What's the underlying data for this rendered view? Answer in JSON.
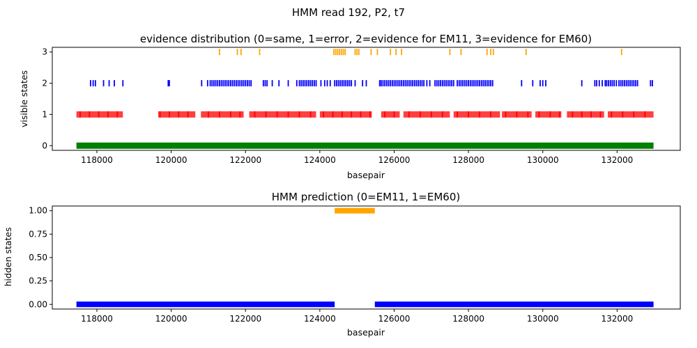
{
  "figure": {
    "suptitle": "HMM read 192, P2, t7"
  },
  "chart_data": [
    {
      "type": "scatter",
      "title": "evidence distribution (0=same, 1=error, 2=evidence for EM11, 3=evidence for EM60)",
      "xlabel": "basepair",
      "ylabel": "visible states",
      "xlim": [
        116800,
        133700
      ],
      "ylim": [
        -0.15,
        3.15
      ],
      "xticks": [
        118000,
        120000,
        122000,
        124000,
        126000,
        128000,
        130000,
        132000
      ],
      "yticks": [
        0,
        1,
        2,
        3
      ],
      "grid": false,
      "series": [
        {
          "state": 0,
          "color": "#008000",
          "range": [
            117450,
            132980
          ]
        },
        {
          "state": 1,
          "color": "#ff0000",
          "segments": [
            [
              117450,
              118700
            ],
            [
              119650,
              120650
            ],
            [
              120800,
              121950
            ],
            [
              122100,
              123900
            ],
            [
              124000,
              125400
            ],
            [
              125650,
              126150
            ],
            [
              126250,
              127500
            ],
            [
              127600,
              128850
            ],
            [
              128900,
              129700
            ],
            [
              129800,
              130500
            ],
            [
              130650,
              131650
            ],
            [
              131750,
              132980
            ]
          ],
          "x": [
            117550,
            117800,
            118050,
            118300,
            118550,
            119700,
            119950,
            120200,
            120450,
            121000,
            121300,
            121600,
            121850,
            122250,
            122550,
            122850,
            123150,
            123450,
            123750,
            124100,
            124350,
            124600,
            124850,
            125100,
            125350,
            125750,
            126000,
            126400,
            126700,
            127000,
            127300,
            127700,
            128000,
            128300,
            128600,
            129000,
            129300,
            129600,
            129900,
            130200,
            130450,
            130800,
            131050,
            131300,
            131550,
            131850,
            132150,
            132450,
            132750
          ]
        },
        {
          "state": 2,
          "color": "#0000ff",
          "x": [
            117830,
            117900,
            117960,
            118180,
            118330,
            118470,
            118700,
            119920,
            119950,
            120820,
            120980,
            121050,
            121100,
            121150,
            121200,
            121250,
            121300,
            121350,
            121400,
            121450,
            121500,
            121550,
            121600,
            121650,
            121700,
            121750,
            121800,
            121850,
            121900,
            121950,
            122000,
            122050,
            122100,
            122150,
            122480,
            122530,
            122580,
            122720,
            122900,
            123150,
            123380,
            123450,
            123500,
            123550,
            123600,
            123650,
            123700,
            123750,
            123800,
            123850,
            123900,
            124030,
            124130,
            124200,
            124280,
            124400,
            124450,
            124500,
            124550,
            124600,
            124650,
            124700,
            124750,
            124800,
            124850,
            124950,
            125150,
            125250,
            125610,
            125650,
            125700,
            125750,
            125800,
            125850,
            125900,
            125950,
            126000,
            126050,
            126100,
            126150,
            126200,
            126250,
            126300,
            126350,
            126400,
            126450,
            126500,
            126550,
            126600,
            126650,
            126700,
            126750,
            126800,
            126880,
            126960,
            127100,
            127150,
            127200,
            127250,
            127300,
            127350,
            127400,
            127450,
            127500,
            127550,
            127600,
            127700,
            127750,
            127800,
            127850,
            127900,
            127950,
            128000,
            128050,
            128100,
            128150,
            128200,
            128250,
            128300,
            128350,
            128400,
            128450,
            128500,
            128550,
            128600,
            128650,
            129430,
            129730,
            129930,
            130000,
            130080,
            131050,
            131400,
            131450,
            131520,
            131600,
            131680,
            131720,
            131770,
            131820,
            131870,
            131920,
            131980,
            132050,
            132100,
            132150,
            132200,
            132250,
            132300,
            132350,
            132400,
            132450,
            132500,
            132550,
            132900,
            132950
          ]
        },
        {
          "state": 3,
          "color": "#ffa500",
          "x": [
            121300,
            121780,
            121880,
            122380,
            124380,
            124430,
            124480,
            124530,
            124580,
            124630,
            124680,
            124950,
            125000,
            125050,
            125380,
            125550,
            125900,
            126050,
            126200,
            127500,
            127800,
            128500,
            128600,
            128670,
            129550,
            132120
          ]
        }
      ]
    },
    {
      "type": "scatter",
      "title": "HMM prediction (0=EM11, 1=EM60)",
      "xlabel": "basepair",
      "ylabel": "hidden states",
      "xlim": [
        116800,
        133700
      ],
      "ylim": [
        -0.05,
        1.05
      ],
      "xticks": [
        118000,
        120000,
        122000,
        124000,
        126000,
        128000,
        130000,
        132000
      ],
      "yticks": [
        0.0,
        0.25,
        0.5,
        0.75,
        1.0
      ],
      "ytick_labels": [
        "0.00",
        "0.25",
        "0.50",
        "0.75",
        "1.00"
      ],
      "grid": false,
      "series": [
        {
          "state": 0,
          "color": "#0000ff",
          "ranges": [
            [
              117450,
              124400
            ],
            [
              125480,
              132980
            ]
          ]
        },
        {
          "state": 1,
          "color": "#ffa500",
          "ranges": [
            [
              124400,
              125480
            ]
          ]
        }
      ]
    }
  ]
}
